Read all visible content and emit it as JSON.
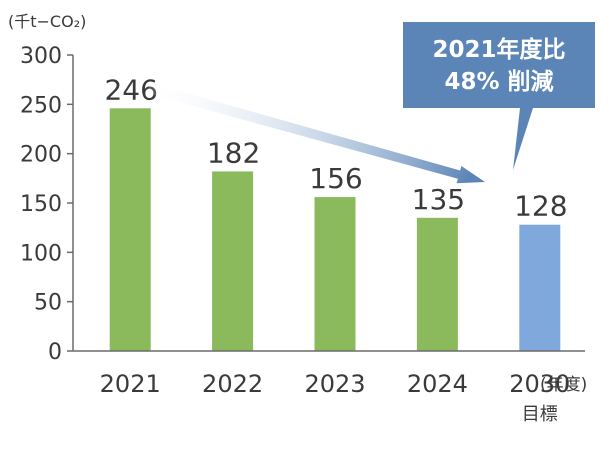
{
  "chart_data": {
    "type": "bar",
    "unit_label": "(千t−CO₂)",
    "x_unit_label": "(年度)",
    "categories": [
      "2021",
      "2022",
      "2023",
      "2024",
      "2030"
    ],
    "category_sublabels": [
      "",
      "",
      "",
      "",
      "目標"
    ],
    "values": [
      246,
      182,
      156,
      135,
      128
    ],
    "data_labels": [
      "246",
      "182",
      "156",
      "135",
      "128"
    ],
    "ylim": [
      0,
      300
    ],
    "yticks": [
      0,
      50,
      100,
      150,
      200,
      250,
      300
    ],
    "ytick_labels": [
      "0",
      "50",
      "100",
      "150",
      "200",
      "250",
      "300"
    ],
    "grid": false,
    "callout": {
      "line1": "2021年度比",
      "line2": "48% 削減"
    },
    "colors": {
      "actual_bar": "#8aba5c",
      "target_bar": "#7fa9dc",
      "callout_fill": "#5b85b7",
      "callout_text": "#ffffff",
      "arrow_end": "#5b85b7",
      "text": "#3a3a3a",
      "axis": "#6b6b6b"
    }
  }
}
